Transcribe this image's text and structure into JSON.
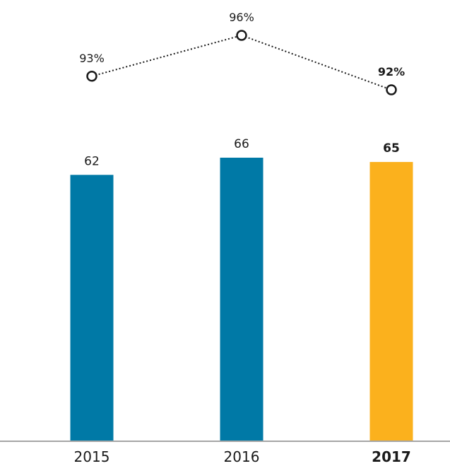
{
  "chart_data": {
    "type": "bar",
    "categories": [
      "2015",
      "2016",
      "2017"
    ],
    "highlight_category": "2017",
    "series": [
      {
        "values": [
          62,
          66,
          65
        ],
        "value_labels": [
          "62",
          "66",
          "65"
        ]
      },
      {
        "type": "line",
        "values": [
          93,
          96,
          92
        ],
        "value_labels": [
          "93%",
          "96%",
          "92%"
        ]
      }
    ],
    "ylim": [
      0,
      66
    ],
    "line_ylim": [
      92,
      96
    ],
    "title": "",
    "xlabel": "",
    "ylabel": "",
    "grid": false,
    "legend": "none",
    "colors": {
      "bar": "#0079a6",
      "bar_highlight": "#fbb11d",
      "axis": "#a6a6a6",
      "line": "#1a1a1a",
      "text": "#1a1a1a"
    }
  }
}
